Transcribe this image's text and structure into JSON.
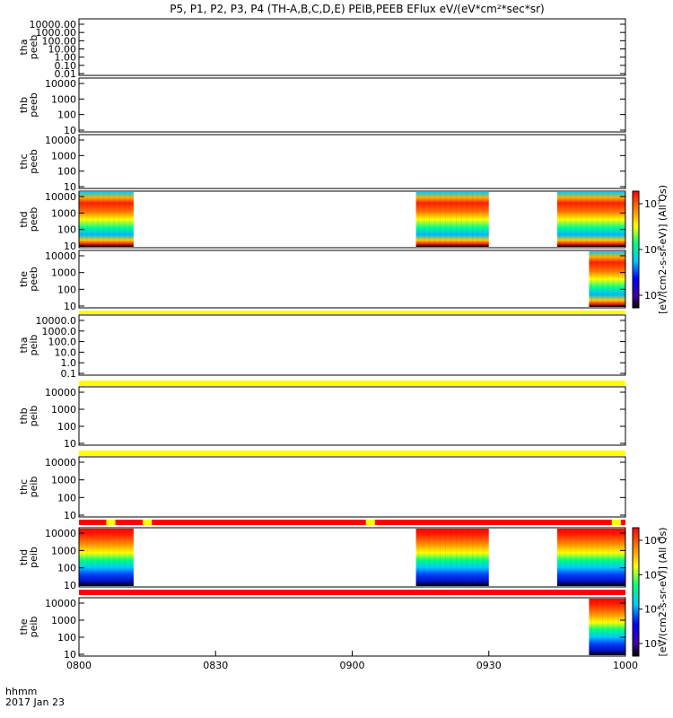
{
  "chart_data": {
    "type": "heatmap",
    "title": "P5, P1, P2, P3, P4 (TH-A,B,C,D,E) PEIB,PEEB EFlux eV/(eV*cm²*sec*sr)",
    "x_axis": {
      "ticks": [
        "0800",
        "0830",
        "0900",
        "0930",
        "1000"
      ],
      "tick_minutes": [
        0,
        30,
        60,
        90,
        120
      ],
      "range_minutes": [
        0,
        120
      ],
      "label_left_1": "hhmm",
      "label_left_2": "2017 Jan 23"
    },
    "panels": [
      {
        "probe": "tha",
        "product": "peeb",
        "yticks": [
          "10000.00",
          "1000.00",
          "100.00",
          "10.00",
          "1.00",
          "0.10",
          "0.01"
        ],
        "data_intervals_min": [],
        "status_bar_after": false
      },
      {
        "probe": "thb",
        "product": "peeb",
        "yticks": [
          "10000",
          "1000",
          "100",
          "10"
        ],
        "data_intervals_min": [],
        "status_bar_after": false
      },
      {
        "probe": "thc",
        "product": "peeb",
        "yticks": [
          "10000",
          "1000",
          "100",
          "10"
        ],
        "data_intervals_min": [],
        "status_bar_after": false
      },
      {
        "probe": "thd",
        "product": "peeb",
        "yticks": [
          "10000",
          "1000",
          "100",
          "10"
        ],
        "data_intervals_min": [
          [
            0,
            12
          ],
          [
            74,
            90
          ],
          [
            105,
            120
          ]
        ],
        "status_bar_after": false
      },
      {
        "probe": "the",
        "product": "peeb",
        "yticks": [
          "10000",
          "1000",
          "100",
          "10"
        ],
        "data_intervals_min": [
          [
            112,
            120
          ]
        ],
        "status_bar_after": true,
        "status_color": "yellow"
      },
      {
        "probe": "tha",
        "product": "peib",
        "yticks": [
          "10000.0",
          "1000.0",
          "100.0",
          "10.0",
          "1.0",
          "0.1"
        ],
        "data_intervals_min": [],
        "status_bar_after": true,
        "status_color": "yellow"
      },
      {
        "probe": "thb",
        "product": "peib",
        "yticks": [
          "10000",
          "1000",
          "100",
          "10"
        ],
        "data_intervals_min": [],
        "status_bar_after": true,
        "status_color": "yellow"
      },
      {
        "probe": "thc",
        "product": "peib",
        "yticks": [
          "10000",
          "1000",
          "100",
          "10"
        ],
        "data_intervals_min": [],
        "status_bar_after": true,
        "status_color": "red"
      },
      {
        "probe": "thd",
        "product": "peib",
        "yticks": [
          "10000",
          "1000",
          "100",
          "10"
        ],
        "data_intervals_min": [
          [
            0,
            12
          ],
          [
            74,
            90
          ],
          [
            105,
            120
          ]
        ],
        "status_bar_after": true,
        "status_color": "red"
      },
      {
        "probe": "the",
        "product": "peib",
        "yticks": [
          "10000",
          "1000",
          "100",
          "10"
        ],
        "data_intervals_min": [
          [
            112,
            120
          ]
        ],
        "status_bar_after": false
      }
    ],
    "colorbars": [
      {
        "ticks": [
          "10⁷",
          "10⁶",
          "10⁵"
        ],
        "label": "[eV/(cm2-s-sr-eV)] (All Qs)",
        "covers_panels": [
          3,
          4
        ]
      },
      {
        "ticks": [
          "10⁶",
          "10⁵",
          "10⁴",
          "10³"
        ],
        "label": "[eV/(cm2-s-sr-eV)] (All Qs)",
        "covers_panels": [
          8,
          9
        ]
      }
    ],
    "colors": {
      "red": "#ff0000",
      "yellow": "#ffff00",
      "colormap": [
        "#000000",
        "#0000ff",
        "#00c8ff",
        "#00ff80",
        "#ffff00",
        "#ff8000",
        "#ff0000"
      ]
    }
  }
}
